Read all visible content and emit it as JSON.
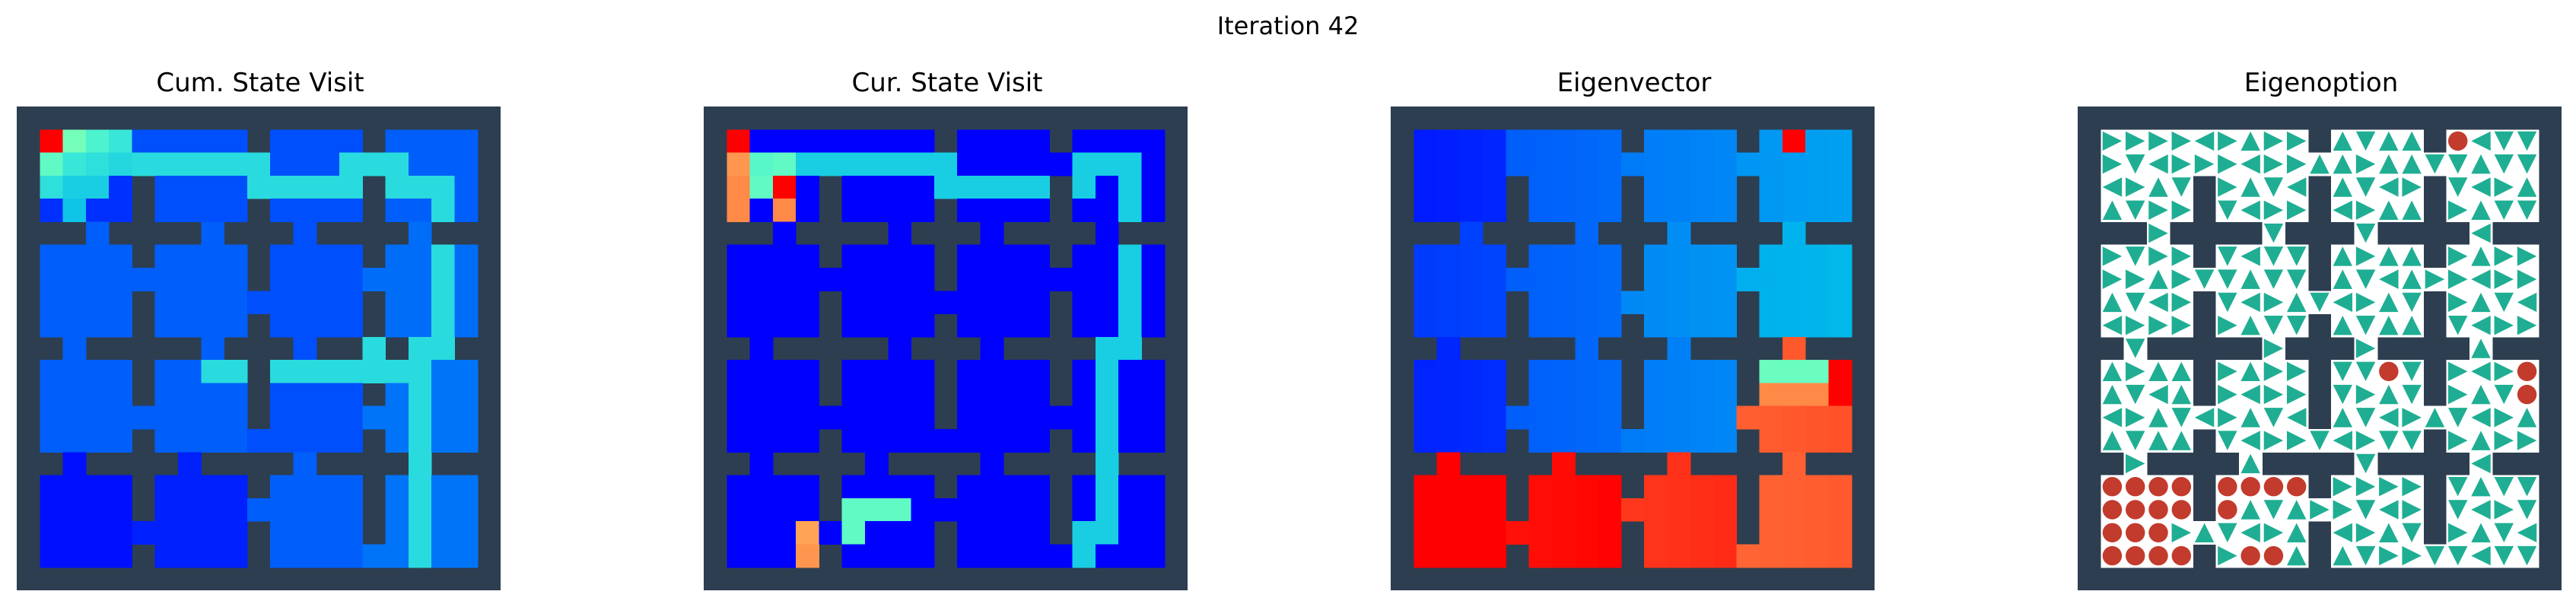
{
  "figure": {
    "title": "Iteration 42"
  },
  "colors": {
    "wall": "#2d3e50",
    "arrow": "#1fae93",
    "dot": "#c23b2c",
    "open": "#ffffff",
    "colormap": "rainbow"
  },
  "layout_meta": {
    "rooms": 4,
    "room_cells": 4,
    "cells": 20
  },
  "doors": {
    "horizontal": [
      [
        [
          0,
          1
        ],
        [
          1,
          1
        ],
        [
          1,
          1
        ],
        [
          2,
          2
        ]
      ],
      [
        [
          1,
          1
        ],
        [
          2,
          2
        ],
        [
          1,
          1
        ],
        [
          2,
          2
        ]
      ],
      [
        [
          2,
          2
        ],
        [
          3,
          3
        ],
        [
          2,
          2
        ],
        [
          1,
          1
        ]
      ],
      [
        [
          2,
          2
        ],
        [
          1,
          1
        ],
        [
          3,
          3
        ],
        [
          2,
          2
        ]
      ]
    ],
    "vertical": [
      [
        [
          2,
          2
        ],
        [
          2,
          2
        ],
        [
          1,
          1
        ],
        [
          1,
          1
        ]
      ],
      [
        [
          1,
          1
        ],
        [
          2,
          2
        ],
        [
          1,
          1
        ],
        [
          1,
          1
        ]
      ],
      [
        [
          1,
          1
        ],
        [
          1,
          1
        ],
        [
          1,
          1
        ],
        [
          1,
          1
        ]
      ]
    ]
  },
  "chart_data": [
    {
      "type": "heatmap",
      "title": "Cum. State Visit",
      "grid": false,
      "cmap": "rainbow",
      "vrange": [
        0,
        1
      ],
      "room_base": [
        [
          0.06,
          0.1,
          0.1,
          0.12
        ],
        [
          0.12,
          0.12,
          0.1,
          0.14
        ],
        [
          0.12,
          0.12,
          0.1,
          0.15
        ],
        [
          0.02,
          0.04,
          0.12,
          0.15
        ]
      ],
      "special": [
        {
          "r": 1,
          "c": 1,
          "v": 1.0
        },
        {
          "r": 1,
          "c": 2,
          "v": 0.48
        },
        {
          "r": 1,
          "c": 3,
          "v": 0.4
        },
        {
          "r": 1,
          "c": 4,
          "v": 0.36
        },
        {
          "r": 2,
          "c": 1,
          "v": 0.44
        },
        {
          "r": 2,
          "c": 2,
          "v": 0.36
        },
        {
          "r": 2,
          "c": 3,
          "v": 0.34
        },
        {
          "r": 2,
          "c": 4,
          "v": 0.32
        },
        {
          "r": 3,
          "c": 1,
          "v": 0.34
        },
        {
          "r": 3,
          "c": 2,
          "v": 0.3
        },
        {
          "r": 3,
          "c": 3,
          "v": 0.3
        },
        {
          "r": 4,
          "c": 2,
          "v": 0.28
        }
      ],
      "path": [
        [
          2,
          5
        ],
        [
          2,
          10
        ],
        [
          3,
          10
        ],
        [
          3,
          14
        ],
        [
          2,
          14
        ],
        [
          2,
          16
        ],
        [
          3,
          16
        ],
        [
          3,
          18
        ],
        [
          10,
          18
        ],
        [
          10,
          15
        ],
        [
          11,
          15
        ],
        [
          11,
          8
        ],
        [
          11,
          17
        ],
        [
          23,
          17
        ]
      ]
    },
    {
      "type": "heatmap",
      "title": "Cur. State Visit",
      "grid": false,
      "cmap": "rainbow",
      "vrange": [
        0,
        1
      ],
      "room_base": [
        [
          0.0,
          0.0,
          0.0,
          0.0
        ],
        [
          0.0,
          0.0,
          0.0,
          0.0
        ],
        [
          0.0,
          0.0,
          0.0,
          0.0
        ],
        [
          0.0,
          0.0,
          0.0,
          0.0
        ]
      ],
      "special": [
        {
          "r": 1,
          "c": 1,
          "v": 1.0
        },
        {
          "r": 2,
          "c": 1,
          "v": 0.8
        },
        {
          "r": 2,
          "c": 2,
          "v": 0.42
        },
        {
          "r": 3,
          "c": 1,
          "v": 0.82
        },
        {
          "r": 3,
          "c": 3,
          "v": 1.0
        },
        {
          "r": 4,
          "c": 1,
          "v": 0.82
        },
        {
          "r": 4,
          "c": 3,
          "v": 0.82
        },
        {
          "r": 2,
          "c": 3,
          "v": 0.44
        },
        {
          "r": 3,
          "c": 2,
          "v": 0.44
        },
        {
          "r": 17,
          "c": 6,
          "v": 0.44
        },
        {
          "r": 17,
          "c": 7,
          "v": 0.44
        },
        {
          "r": 17,
          "c": 8,
          "v": 0.44
        },
        {
          "r": 18,
          "c": 6,
          "v": 0.44
        },
        {
          "r": 18,
          "c": 4,
          "v": 0.78
        },
        {
          "r": 19,
          "c": 4,
          "v": 0.8
        }
      ],
      "path": [
        [
          2,
          4
        ],
        [
          2,
          10
        ],
        [
          3,
          10
        ],
        [
          3,
          16
        ],
        [
          2,
          16
        ],
        [
          2,
          18
        ],
        [
          3,
          18
        ],
        [
          10,
          18
        ],
        [
          10,
          17
        ],
        [
          18,
          17
        ],
        [
          18,
          16
        ],
        [
          19,
          16
        ]
      ]
    },
    {
      "type": "heatmap",
      "title": "Eigenvector",
      "grid": false,
      "cmap": "rainbow",
      "vrange": [
        0,
        1
      ],
      "room_base": [
        [
          0.03,
          0.12,
          0.16,
          0.2
        ],
        [
          0.07,
          0.12,
          0.18,
          0.24
        ],
        [
          0.04,
          0.12,
          0.16,
          0.88
        ],
        [
          1.0,
          0.98,
          0.93,
          0.87
        ]
      ],
      "special": [
        {
          "r": 1,
          "c": 17,
          "v": 1.0
        },
        {
          "r": 11,
          "c": 16,
          "v": 0.46
        },
        {
          "r": 11,
          "c": 17,
          "v": 0.46
        },
        {
          "r": 11,
          "c": 18,
          "v": 0.46
        },
        {
          "r": 11,
          "c": 19,
          "v": 1.0
        },
        {
          "r": 12,
          "c": 19,
          "v": 1.0
        },
        {
          "r": 12,
          "c": 16,
          "v": 0.82
        },
        {
          "r": 12,
          "c": 17,
          "v": 0.82
        },
        {
          "r": 12,
          "c": 18,
          "v": 0.82
        }
      ],
      "path": []
    },
    {
      "type": "table",
      "title": "Eigenoption",
      "grid": false,
      "legend": "none",
      "symbols": {
        "arrow": "greedy action direction",
        "dot": "terminate"
      },
      "room_pattern": [
        [
          "e",
          "e",
          "n",
          "s"
        ],
        [
          "e",
          "s",
          "n",
          "e"
        ],
        [
          "n",
          "e",
          "s",
          "e"
        ],
        [
          "s",
          "n",
          "e",
          "s"
        ]
      ],
      "dots": [
        [
          1,
          16
        ],
        [
          11,
          13
        ],
        [
          11,
          19
        ],
        [
          12,
          19
        ],
        [
          16,
          1
        ],
        [
          16,
          2
        ],
        [
          16,
          3
        ],
        [
          16,
          4
        ],
        [
          17,
          1
        ],
        [
          17,
          2
        ],
        [
          17,
          3
        ],
        [
          17,
          4
        ],
        [
          18,
          1
        ],
        [
          18,
          2
        ],
        [
          18,
          3
        ],
        [
          19,
          1
        ],
        [
          19,
          2
        ],
        [
          19,
          3
        ],
        [
          19,
          4
        ],
        [
          16,
          6
        ],
        [
          16,
          7
        ],
        [
          16,
          8
        ],
        [
          16,
          9
        ],
        [
          17,
          6
        ],
        [
          19,
          7
        ],
        [
          19,
          8
        ]
      ]
    }
  ]
}
